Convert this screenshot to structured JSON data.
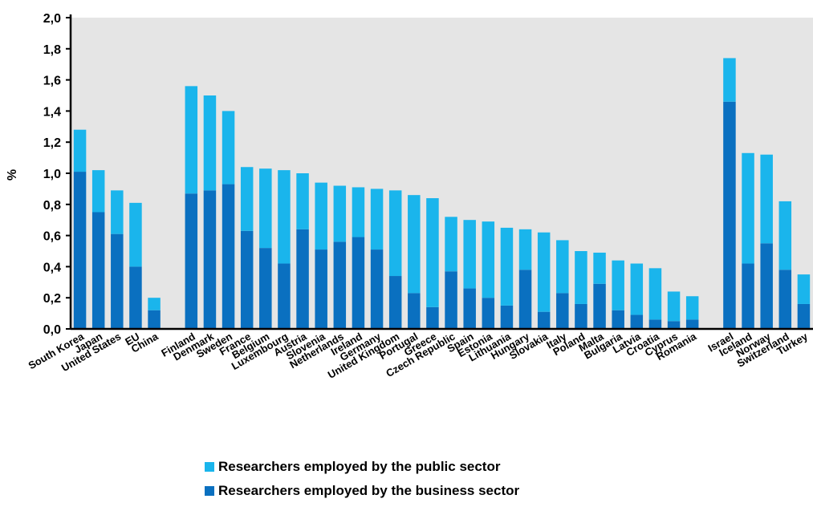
{
  "chart_data": {
    "type": "bar",
    "stacked": true,
    "title": "",
    "xlabel": "",
    "ylabel": "%",
    "ylim": [
      0,
      2.0
    ],
    "yticks": [
      "0,0",
      "0,2",
      "0,4",
      "0,6",
      "0,8",
      "1,0",
      "1,2",
      "1,4",
      "1,6",
      "1,8",
      "2,0"
    ],
    "grid": false,
    "legend_position": "bottom",
    "colors": {
      "public": "#1ab5ec",
      "business": "#0a70c0",
      "plot_bg": "#e5e5e5"
    },
    "categories": [
      "South Korea",
      "Japan",
      "United States",
      "EU",
      "China",
      "",
      "Finland",
      "Denmark",
      "Sweden",
      "France",
      "Belgium",
      "Luxembourg",
      "Austria",
      "Slovenia",
      "Netherlands",
      "Ireland",
      "Germany",
      "United Kingdom",
      "Portugal",
      "Greece",
      "Czech Republic",
      "Spain",
      "Estonia",
      "Lithuania",
      "Hungary",
      "Slovakia",
      "Italy",
      "Poland",
      "Malta",
      "Bulgaria",
      "Latvia",
      "Croatia",
      "Cyprus",
      "Romania",
      "",
      "Israel",
      "Iceland",
      "Norway",
      "Switzerland",
      "Turkey"
    ],
    "series": [
      {
        "name": "Researchers employed by the business sector",
        "key": "business",
        "values": [
          1.01,
          0.75,
          0.61,
          0.4,
          0.12,
          null,
          0.87,
          0.89,
          0.93,
          0.63,
          0.52,
          0.42,
          0.64,
          0.51,
          0.56,
          0.59,
          0.51,
          0.34,
          0.23,
          0.14,
          0.37,
          0.26,
          0.2,
          0.15,
          0.38,
          0.11,
          0.23,
          0.16,
          0.29,
          0.12,
          0.09,
          0.06,
          0.05,
          0.06,
          null,
          1.46,
          0.42,
          0.55,
          0.38,
          0.16
        ]
      },
      {
        "name": "Researchers employed by the public sector",
        "key": "public",
        "values": [
          0.27,
          0.27,
          0.28,
          0.41,
          0.08,
          null,
          0.69,
          0.61,
          0.47,
          0.41,
          0.51,
          0.6,
          0.36,
          0.43,
          0.36,
          0.32,
          0.39,
          0.55,
          0.63,
          0.7,
          0.35,
          0.44,
          0.49,
          0.5,
          0.26,
          0.51,
          0.34,
          0.34,
          0.2,
          0.32,
          0.33,
          0.33,
          0.19,
          0.15,
          null,
          0.28,
          0.71,
          0.57,
          0.44,
          0.19
        ]
      }
    ],
    "legend": [
      {
        "label": "Researchers employed by the public sector",
        "color": "#1ab5ec"
      },
      {
        "label": "Researchers employed by the business sector",
        "color": "#0a70c0"
      }
    ]
  }
}
